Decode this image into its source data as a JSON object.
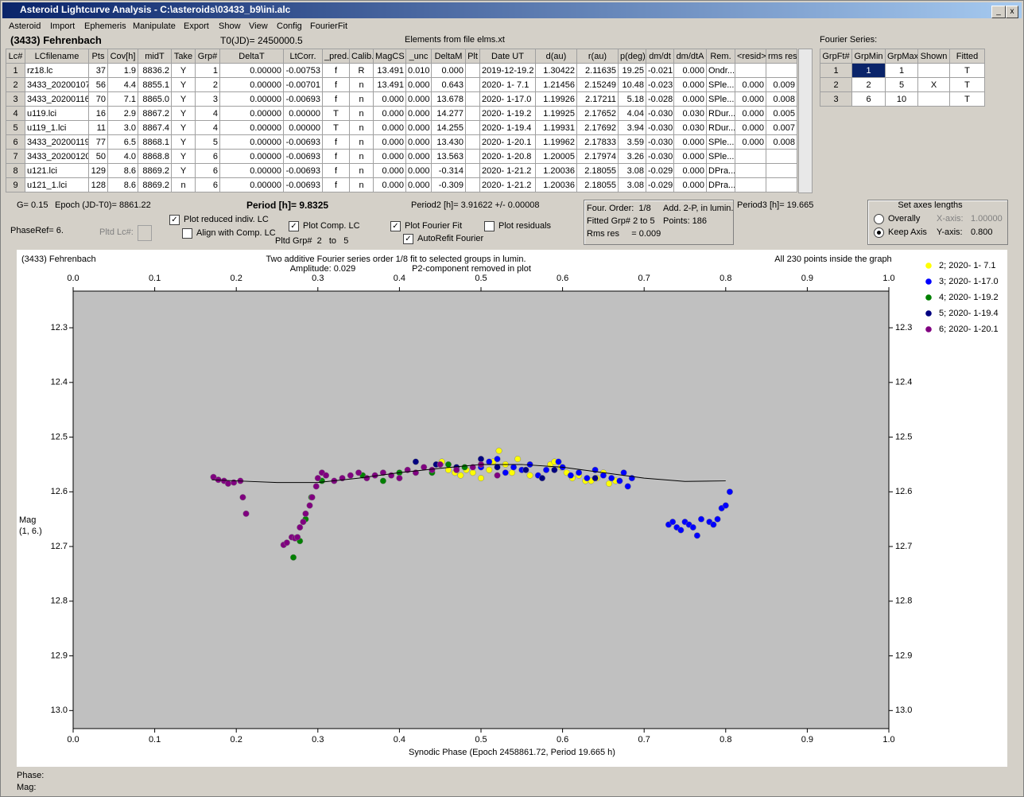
{
  "window": {
    "title": "Asteroid Lightcurve Analysis - C:\\asteroids\\03433_b9\\ini.alc"
  },
  "menu": [
    "Asteroid",
    "Import",
    "Ephemeris",
    "Manipulate",
    "Export",
    "Show",
    "View",
    "Config",
    "FourierFit"
  ],
  "header": {
    "asteroid": "(3433) Fehrenbach",
    "t0": "T0(JD)= 2450000.5",
    "elements": "Elements from file elms.xt",
    "fourier": "Fourier Series:"
  },
  "table": {
    "columns": [
      "Lc#",
      "LCfilename",
      "Pts",
      "Cov[h]",
      "midT",
      "Take",
      "Grp#",
      "DeltaT",
      "LtCorr.",
      "_pred.",
      "Calib.",
      "MagCS",
      "_unc",
      "DeltaM",
      "Plt",
      "Date UT",
      "d(au)",
      "r(au)",
      "p(deg)",
      "dm/dt",
      "dm/dtA",
      "Rem.",
      "<resid>",
      "rms res"
    ],
    "rows": [
      [
        "1",
        "rz18.lc",
        "37",
        "1.9",
        "8836.2",
        "Y",
        "1",
        "0.00000",
        "-0.00753",
        "f",
        "R",
        "13.491",
        "0.010",
        "0.000",
        null,
        "2019-12-19.2",
        "1.30422",
        "2.11635",
        "19.25",
        "-0.021",
        "0.000",
        "Ondr...",
        null,
        null
      ],
      [
        "2",
        "3433_20200107",
        "56",
        "4.4",
        "8855.1",
        "Y",
        "2",
        "0.00000",
        "-0.00701",
        "f",
        "n",
        "13.491",
        "0.000",
        "0.643",
        null,
        "2020- 1- 7.1",
        "1.21456",
        "2.15249",
        "10.48",
        "-0.023",
        "0.000",
        "SPle...",
        "0.000",
        "0.009"
      ],
      [
        "3",
        "3433_20200116",
        "70",
        "7.1",
        "8865.0",
        "Y",
        "3",
        "0.00000",
        "-0.00693",
        "f",
        "n",
        "0.000",
        "0.000",
        "13.678",
        null,
        "2020- 1-17.0",
        "1.19926",
        "2.17211",
        "5.18",
        "-0.028",
        "0.000",
        "SPle...",
        "0.000",
        "0.008"
      ],
      [
        "4",
        "u119.lci",
        "16",
        "2.9",
        "8867.2",
        "Y",
        "4",
        "0.00000",
        "0.00000",
        "T",
        "n",
        "0.000",
        "0.000",
        "14.277",
        null,
        "2020- 1-19.2",
        "1.19925",
        "2.17652",
        "4.04",
        "-0.030",
        "0.030",
        "RDur...",
        "0.000",
        "0.005"
      ],
      [
        "5",
        "u119_1.lci",
        "11",
        "3.0",
        "8867.4",
        "Y",
        "4",
        "0.00000",
        "0.00000",
        "T",
        "n",
        "0.000",
        "0.000",
        "14.255",
        null,
        "2020- 1-19.4",
        "1.19931",
        "2.17692",
        "3.94",
        "-0.030",
        "0.030",
        "RDur...",
        "0.000",
        "0.007"
      ],
      [
        "6",
        "3433_20200119",
        "77",
        "6.5",
        "8868.1",
        "Y",
        "5",
        "0.00000",
        "-0.00693",
        "f",
        "n",
        "0.000",
        "0.000",
        "13.430",
        null,
        "2020- 1-20.1",
        "1.19962",
        "2.17833",
        "3.59",
        "-0.030",
        "0.000",
        "SPle...",
        "0.000",
        "0.008"
      ],
      [
        "7",
        "3433_20200120",
        "50",
        "4.0",
        "8868.8",
        "Y",
        "6",
        "0.00000",
        "-0.00693",
        "f",
        "n",
        "0.000",
        "0.000",
        "13.563",
        null,
        "2020- 1-20.8",
        "1.20005",
        "2.17974",
        "3.26",
        "-0.030",
        "0.000",
        "SPle...",
        null,
        null
      ],
      [
        "8",
        "u121.lci",
        "129",
        "8.6",
        "8869.2",
        "Y",
        "6",
        "0.00000",
        "-0.00693",
        "f",
        "n",
        "0.000",
        "0.000",
        "-0.314",
        null,
        "2020- 1-21.2",
        "1.20036",
        "2.18055",
        "3.08",
        "-0.029",
        "0.000",
        "DPra...",
        null,
        null
      ],
      [
        "9",
        "u121_1.lci",
        "128",
        "8.6",
        "8869.2",
        "n",
        "6",
        "0.00000",
        "-0.00693",
        "f",
        "n",
        "0.000",
        "0.000",
        "-0.309",
        null,
        "2020- 1-21.2",
        "1.20036",
        "2.18055",
        "3.08",
        "-0.029",
        "0.000",
        "DPra...",
        null,
        null
      ]
    ]
  },
  "fourier_table": {
    "columns": [
      "GrpFt#",
      "GrpMin",
      "GrpMax",
      "Shown",
      "Fitted"
    ],
    "rows": [
      [
        "1",
        "1",
        "1",
        null,
        "T"
      ],
      [
        "2",
        "2",
        "5",
        "X",
        "T"
      ],
      [
        "3",
        "6",
        "10",
        null,
        "T"
      ]
    ]
  },
  "params": {
    "g": "G= 0.15",
    "epoch": "Epoch (JD-T0)= 8861.22",
    "period": "Period [h]= 9.8325",
    "period2": "Period2 [h]= 3.91622 +/- 0.00008",
    "period3": "Period3 [h]= 19.665",
    "phaseref": "PhaseRef= 6.",
    "pltd_lc": "Pltd Lc#:",
    "pltd_grp": "Pltd Grp#  2   to   5"
  },
  "controls": {
    "plot_reduced": {
      "label": "Plot reduced indiv. LC",
      "checked": true
    },
    "align_comp": {
      "label": "Align with Comp. LC",
      "checked": false
    },
    "plot_comp": {
      "label": "Plot Comp. LC",
      "checked": true
    },
    "plot_fourier": {
      "label": "Plot Fourier Fit",
      "checked": true
    },
    "autorefit": {
      "label": "AutoRefit Fourier",
      "checked": true
    },
    "plot_residuals": {
      "label": "Plot residuals",
      "checked": false
    }
  },
  "info": {
    "order": "Four. Order:  1/8",
    "add": "Add. 2-P, in lumin.",
    "fitted": "Fitted Grp# 2 to 5",
    "points": "Points: 186",
    "rms": "Rms res     = 0.009"
  },
  "axes_panel": {
    "title": "Set axes lengths",
    "overally": {
      "label": "Overally",
      "checked": false
    },
    "keep": {
      "label": "Keep Axis",
      "checked": true
    },
    "x_label": "X-axis:",
    "x_value": "1.00000",
    "y_label": "Y-axis:",
    "y_value": "0.800"
  },
  "status": {
    "phase": "Phase:",
    "mag": "Mag:"
  },
  "chart_data": {
    "type": "scatter",
    "title": "(3433) Fehrenbach",
    "subtitle": "Two additive Fourier series order 1/8 fit to selected groups in lumin.",
    "annotations": [
      "Amplitude: 0.029",
      "P2-component removed in plot",
      "All 230 points inside the graph"
    ],
    "x_label": "Synodic Phase (Epoch 2458861.72, Period 19.665 h)",
    "y_label": [
      "Mag",
      "(1, 6.)"
    ],
    "xlim": [
      0,
      1
    ],
    "xticks": [
      {
        "value": 0,
        "label": "0.0"
      },
      0.1,
      0.2,
      0.3,
      0.4,
      0.5,
      0.6,
      0.7,
      0.8,
      0.9,
      {
        "value": 1,
        "label": "1.0"
      }
    ],
    "ylim": [
      12.233,
      13.033
    ],
    "y_inverted": true,
    "yticks": [
      12.3,
      12.4,
      12.5,
      12.6,
      12.7,
      12.8,
      12.9,
      {
        "value": 13,
        "label": "13.0"
      }
    ],
    "fit": {
      "color": "#000000",
      "x": [
        0.17,
        0.2,
        0.25,
        0.3,
        0.35,
        0.4,
        0.45,
        0.5,
        0.55,
        0.6,
        0.65,
        0.7,
        0.75,
        0.8
      ],
      "y": [
        12.578,
        12.58,
        12.583,
        12.583,
        12.575,
        12.565,
        12.557,
        12.55,
        12.55,
        12.555,
        12.565,
        12.575,
        12.581,
        12.58
      ]
    },
    "series": [
      {
        "name": "2; 2020- 1- 7.1",
        "color": "#ffff00",
        "x": [
          0.452,
          0.46,
          0.468,
          0.475,
          0.482,
          0.49,
          0.5,
          0.51,
          0.515,
          0.522,
          0.53,
          0.538,
          0.545,
          0.56,
          0.585,
          0.59,
          0.598,
          0.605,
          0.612,
          0.62,
          0.628,
          0.635,
          0.642,
          0.65,
          0.657,
          0.665
        ],
        "values": [
          12.545,
          12.56,
          12.565,
          12.57,
          12.56,
          12.565,
          12.575,
          12.56,
          12.545,
          12.525,
          12.55,
          12.565,
          12.54,
          12.57,
          12.55,
          12.545,
          12.555,
          12.565,
          12.575,
          12.57,
          12.58,
          12.58,
          12.575,
          12.565,
          12.585,
          12.58
        ]
      },
      {
        "name": "3; 2020- 1-17.0",
        "color": "#0000ff",
        "x": [
          0.5,
          0.51,
          0.52,
          0.53,
          0.54,
          0.55,
          0.56,
          0.57,
          0.58,
          0.595,
          0.6,
          0.61,
          0.62,
          0.63,
          0.64,
          0.65,
          0.66,
          0.67,
          0.675,
          0.68,
          0.685,
          0.73,
          0.735,
          0.74,
          0.745,
          0.75,
          0.755,
          0.76,
          0.765,
          0.77,
          0.78,
          0.785,
          0.79,
          0.795,
          0.8,
          0.805
        ],
        "values": [
          12.555,
          12.545,
          12.54,
          12.565,
          12.555,
          12.56,
          12.55,
          12.57,
          12.56,
          12.545,
          12.555,
          12.57,
          12.565,
          12.575,
          12.56,
          12.57,
          12.575,
          12.58,
          12.565,
          12.59,
          12.575,
          12.66,
          12.655,
          12.665,
          12.67,
          12.655,
          12.66,
          12.665,
          12.68,
          12.65,
          12.655,
          12.66,
          12.65,
          12.63,
          12.625,
          12.6
        ]
      },
      {
        "name": "4; 2020- 1-19.2",
        "color": "#008000",
        "x": [
          0.27,
          0.278,
          0.285,
          0.292,
          0.305,
          0.355,
          0.38,
          0.4,
          0.44,
          0.46,
          0.48
        ],
        "values": [
          12.72,
          12.69,
          12.65,
          12.61,
          12.58,
          12.57,
          12.58,
          12.565,
          12.565,
          12.55,
          12.555
        ]
      },
      {
        "name": "5; 2020- 1-19.4",
        "color": "#000080",
        "x": [
          0.42,
          0.445,
          0.47,
          0.5,
          0.52,
          0.555,
          0.575,
          0.59,
          0.64
        ],
        "values": [
          12.545,
          12.55,
          12.555,
          12.54,
          12.555,
          12.56,
          12.575,
          12.56,
          12.575
        ]
      },
      {
        "name": "6; 2020- 1-20.1",
        "color": "#800080",
        "x": [
          0.172,
          0.178,
          0.185,
          0.19,
          0.197,
          0.205,
          0.208,
          0.212,
          0.258,
          0.262,
          0.268,
          0.272,
          0.275,
          0.278,
          0.282,
          0.285,
          0.29,
          0.293,
          0.298,
          0.3,
          0.305,
          0.31,
          0.32,
          0.33,
          0.34,
          0.35,
          0.36,
          0.37,
          0.38,
          0.39,
          0.4,
          0.41,
          0.42,
          0.43,
          0.44,
          0.45,
          0.47,
          0.49,
          0.5,
          0.52
        ],
        "values": [
          12.573,
          12.578,
          12.58,
          12.585,
          12.583,
          12.58,
          12.61,
          12.64,
          12.697,
          12.693,
          12.683,
          12.685,
          12.683,
          12.665,
          12.655,
          12.64,
          12.625,
          12.61,
          12.59,
          12.575,
          12.565,
          12.57,
          12.58,
          12.575,
          12.57,
          12.565,
          12.575,
          12.57,
          12.565,
          12.57,
          12.575,
          12.56,
          12.565,
          12.555,
          12.56,
          12.55,
          12.56,
          12.555,
          12.55,
          12.57
        ]
      }
    ]
  }
}
